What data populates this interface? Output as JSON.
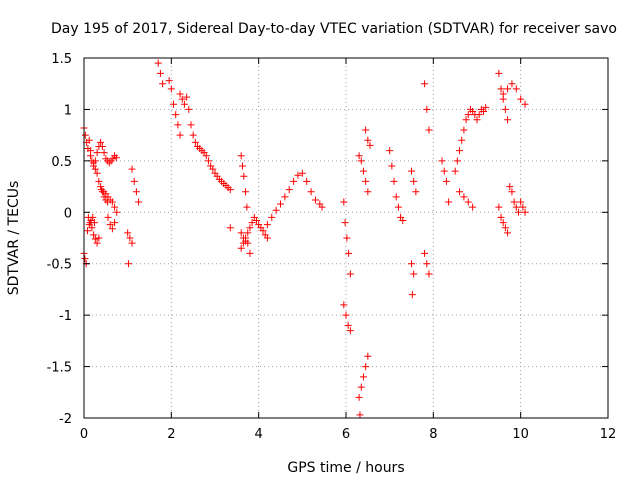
{
  "chart_data": {
    "type": "scatter",
    "title": "Day 195 of 2017, Sidereal Day-to-day VTEC variation (SDTVAR) for receiver savo",
    "xlabel": "GPS time / hours",
    "ylabel": "SDTVAR / TECUs",
    "xlim": [
      0,
      12
    ],
    "ylim": [
      -2,
      1.5
    ],
    "x_ticks": [
      0,
      2,
      4,
      6,
      8,
      10,
      12
    ],
    "x_tick_labels": [
      "0",
      "2",
      "4",
      "6",
      "8",
      "10",
      "12"
    ],
    "y_ticks": [
      -2,
      -1.5,
      -1,
      -0.5,
      0,
      0.5,
      1,
      1.5
    ],
    "y_tick_labels": [
      "-2",
      "-1.5",
      "-1",
      "-0.5",
      "0",
      "0.5",
      "1",
      "1.5"
    ],
    "grid": true,
    "marker": "+",
    "color": "#ff0000",
    "series": [
      {
        "name": "SDTVAR",
        "segments": [
          {
            "x": [
              0.0,
              0.02,
              0.05
            ],
            "y": [
              -0.4,
              -0.45,
              -0.5
            ]
          },
          {
            "x": [
              0.0,
              0.03,
              0.06,
              0.09,
              0.12,
              0.15
            ],
            "y": [
              0.82,
              0.75,
              0.68,
              0.62,
              0.7,
              0.6
            ]
          },
          {
            "x": [
              0.15,
              0.18,
              0.22,
              0.26,
              0.3,
              0.34,
              0.38,
              0.42,
              0.46,
              0.5,
              0.54
            ],
            "y": [
              0.55,
              0.5,
              0.48,
              0.42,
              0.38,
              0.3,
              0.25,
              0.2,
              0.15,
              0.12,
              0.1
            ]
          },
          {
            "x": [
              0.22,
              0.26,
              0.3,
              0.34,
              0.38,
              0.42,
              0.46,
              0.5,
              0.54,
              0.58,
              0.62,
              0.66,
              0.7,
              0.74
            ],
            "y": [
              0.45,
              0.5,
              0.58,
              0.64,
              0.68,
              0.64,
              0.58,
              0.52,
              0.5,
              0.48,
              0.5,
              0.52,
              0.55,
              0.53
            ]
          },
          {
            "x": [
              0.1,
              0.14,
              0.18,
              0.22,
              0.26,
              0.3,
              0.34
            ],
            "y": [
              -0.05,
              -0.1,
              -0.15,
              -0.22,
              -0.26,
              -0.3,
              -0.25
            ]
          },
          {
            "x": [
              0.08,
              0.12,
              0.16,
              0.2,
              0.24
            ],
            "y": [
              -0.18,
              -0.12,
              -0.08,
              -0.05,
              -0.1
            ]
          },
          {
            "x": [
              0.4,
              0.45,
              0.5,
              0.55,
              0.6,
              0.65,
              0.7,
              0.75
            ],
            "y": [
              0.22,
              0.2,
              0.18,
              0.15,
              0.12,
              0.1,
              0.05,
              0.0
            ]
          },
          {
            "x": [
              0.55,
              0.6,
              0.65,
              0.7
            ],
            "y": [
              -0.05,
              -0.12,
              -0.16,
              -0.1
            ]
          },
          {
            "x": [
              1.0,
              1.05,
              1.1
            ],
            "y": [
              -0.2,
              -0.25,
              -0.3
            ]
          },
          {
            "x": [
              1.02
            ],
            "y": [
              -0.5
            ]
          },
          {
            "x": [
              1.1,
              1.15,
              1.2,
              1.25
            ],
            "y": [
              0.42,
              0.3,
              0.2,
              0.1
            ]
          },
          {
            "x": [
              1.7,
              1.75,
              1.8
            ],
            "y": [
              1.45,
              1.35,
              1.25
            ]
          },
          {
            "x": [
              1.95,
              2.0,
              2.05,
              2.1,
              2.15,
              2.2
            ],
            "y": [
              1.28,
              1.2,
              1.05,
              0.95,
              0.85,
              0.75
            ]
          },
          {
            "x": [
              2.2,
              2.25,
              2.3,
              2.35,
              2.4
            ],
            "y": [
              1.15,
              1.1,
              1.05,
              1.12,
              1.0
            ]
          },
          {
            "x": [
              2.45,
              2.5,
              2.55,
              2.6,
              2.65,
              2.7,
              2.75,
              2.8,
              2.85,
              2.9,
              2.95,
              3.0,
              3.05,
              3.1,
              3.15,
              3.2,
              3.25,
              3.3,
              3.35
            ],
            "y": [
              0.85,
              0.75,
              0.68,
              0.64,
              0.62,
              0.6,
              0.58,
              0.55,
              0.5,
              0.45,
              0.42,
              0.38,
              0.35,
              0.32,
              0.3,
              0.28,
              0.26,
              0.24,
              0.22
            ]
          },
          {
            "x": [
              3.35
            ],
            "y": [
              -0.15
            ]
          },
          {
            "x": [
              3.6,
              3.63,
              3.66,
              3.7,
              3.73
            ],
            "y": [
              0.55,
              0.45,
              0.35,
              0.2,
              0.05
            ]
          },
          {
            "x": [
              3.6,
              3.65,
              3.7,
              3.75,
              3.8,
              3.85,
              3.9,
              3.95,
              4.0,
              4.05,
              4.1,
              4.15,
              4.2
            ],
            "y": [
              -0.35,
              -0.3,
              -0.25,
              -0.2,
              -0.15,
              -0.1,
              -0.05,
              -0.08,
              -0.12,
              -0.15,
              -0.18,
              -0.22,
              -0.25
            ]
          },
          {
            "x": [
              3.6,
              3.65,
              3.7,
              3.75,
              3.8
            ],
            "y": [
              -0.2,
              -0.25,
              -0.28,
              -0.3,
              -0.4
            ]
          },
          {
            "x": [
              4.2,
              4.3,
              4.4,
              4.5,
              4.6,
              4.7,
              4.8,
              4.9,
              5.0,
              5.1,
              5.2,
              5.3,
              5.4,
              5.45
            ],
            "y": [
              -0.12,
              -0.05,
              0.02,
              0.08,
              0.15,
              0.22,
              0.3,
              0.36,
              0.38,
              0.3,
              0.2,
              0.12,
              0.08,
              0.05
            ]
          },
          {
            "x": [
              5.95,
              5.98,
              6.02,
              6.06,
              6.1
            ],
            "y": [
              0.1,
              -0.1,
              -0.25,
              -0.4,
              -0.6
            ]
          },
          {
            "x": [
              5.95,
              6.0,
              6.05,
              6.1
            ],
            "y": [
              -0.9,
              -1.0,
              -1.1,
              -1.15
            ]
          },
          {
            "x": [
              6.3,
              6.35,
              6.4,
              6.45,
              6.5
            ],
            "y": [
              -1.8,
              -1.7,
              -1.6,
              -1.5,
              -1.4
            ]
          },
          {
            "x": [
              6.32
            ],
            "y": [
              -1.97
            ]
          },
          {
            "x": [
              6.3,
              6.35,
              6.4,
              6.45,
              6.5
            ],
            "y": [
              0.55,
              0.5,
              0.4,
              0.3,
              0.2
            ]
          },
          {
            "x": [
              6.45,
              6.5,
              6.55
            ],
            "y": [
              0.8,
              0.7,
              0.65
            ]
          },
          {
            "x": [
              7.0,
              7.05,
              7.1,
              7.15,
              7.2,
              7.25,
              7.3
            ],
            "y": [
              0.6,
              0.45,
              0.3,
              0.15,
              0.05,
              -0.05,
              -0.08
            ]
          },
          {
            "x": [
              7.5,
              7.55,
              7.6
            ],
            "y": [
              0.4,
              0.3,
              0.2
            ]
          },
          {
            "x": [
              7.5,
              7.55
            ],
            "y": [
              -0.5,
              -0.6
            ]
          },
          {
            "x": [
              7.52
            ],
            "y": [
              -0.8
            ]
          },
          {
            "x": [
              7.8,
              7.85,
              7.9
            ],
            "y": [
              1.25,
              1.0,
              0.8
            ]
          },
          {
            "x": [
              7.8,
              7.85,
              7.9
            ],
            "y": [
              -0.4,
              -0.5,
              -0.6
            ]
          },
          {
            "x": [
              8.2,
              8.25,
              8.3,
              8.35
            ],
            "y": [
              0.5,
              0.4,
              0.3,
              0.1
            ]
          },
          {
            "x": [
              8.5,
              8.55,
              8.6,
              8.65,
              8.7,
              8.75,
              8.8,
              8.85,
              8.9,
              8.95,
              9.0,
              9.05,
              9.1,
              9.15,
              9.2
            ],
            "y": [
              0.4,
              0.5,
              0.6,
              0.7,
              0.8,
              0.9,
              0.95,
              1.0,
              0.98,
              0.95,
              0.9,
              0.95,
              1.0,
              0.98,
              1.02
            ]
          },
          {
            "x": [
              8.6,
              8.7,
              8.8,
              8.9
            ],
            "y": [
              0.2,
              0.15,
              0.1,
              0.05
            ]
          },
          {
            "x": [
              9.5,
              9.55,
              9.6,
              9.65,
              9.7
            ],
            "y": [
              1.35,
              1.2,
              1.1,
              1.0,
              0.9
            ]
          },
          {
            "x": [
              9.6,
              9.7,
              9.8,
              9.9,
              10.0,
              10.1
            ],
            "y": [
              1.15,
              1.2,
              1.25,
              1.2,
              1.1,
              1.05
            ]
          },
          {
            "x": [
              9.5,
              9.55,
              9.6,
              9.65,
              9.7
            ],
            "y": [
              0.05,
              -0.05,
              -0.1,
              -0.15,
              -0.2
            ]
          },
          {
            "x": [
              9.75,
              9.8,
              9.85,
              9.9,
              9.95,
              10.0,
              10.05,
              10.1
            ],
            "y": [
              0.25,
              0.2,
              0.1,
              0.05,
              0.0,
              0.1,
              0.05,
              0.0
            ]
          }
        ]
      }
    ]
  }
}
